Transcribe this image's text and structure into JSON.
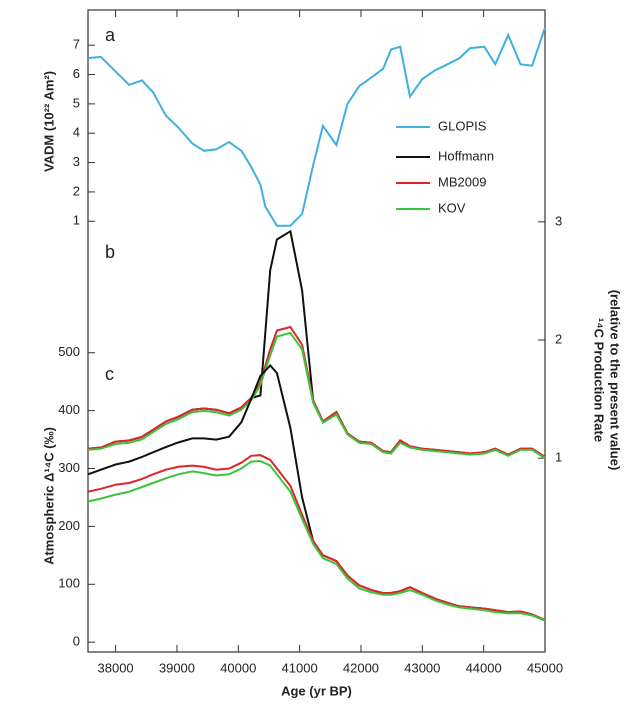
{
  "chart_data": [
    {
      "type": "line",
      "label": "a",
      "ylabel": "VADM (10²² Am²)",
      "yaxis_side": "left",
      "ylim": [
        0.6,
        8.2
      ],
      "yticks": [
        1,
        2,
        3,
        4,
        5,
        6,
        7
      ],
      "x": [
        37550,
        37760,
        38000,
        38220,
        38430,
        38610,
        38820,
        39020,
        39250,
        39440,
        39640,
        39850,
        40050,
        40210,
        40360,
        40440,
        40630,
        40850,
        41040,
        41220,
        41380,
        41600,
        41780,
        41970,
        42170,
        42360,
        42490,
        42640,
        42800,
        43000,
        43210,
        43410,
        43600,
        43780,
        44010,
        44190,
        44400,
        44600,
        44790,
        45000
      ],
      "series": [
        {
          "name": "GLOPIS",
          "color": "#3fb0e0",
          "values": [
            6.56,
            6.6,
            6.1,
            5.65,
            5.8,
            5.4,
            4.6,
            4.2,
            3.65,
            3.4,
            3.45,
            3.7,
            3.4,
            2.85,
            2.25,
            1.5,
            0.85,
            0.85,
            1.25,
            2.9,
            4.25,
            3.6,
            5.0,
            5.6,
            5.9,
            6.2,
            6.85,
            6.95,
            5.25,
            5.85,
            6.15,
            6.35,
            6.55,
            6.9,
            6.95,
            6.35,
            7.35,
            6.35,
            6.3,
            7.6
          ]
        }
      ]
    },
    {
      "type": "line",
      "label": "b",
      "ylabel": [
        "¹⁴C Production Rate",
        "(relative to the present value)"
      ],
      "yaxis_side": "right",
      "ylim": [
        0.9,
        3.1
      ],
      "yticks": [
        1,
        2,
        3
      ],
      "x": [
        37550,
        37760,
        38000,
        38220,
        38430,
        38610,
        38820,
        39020,
        39250,
        39440,
        39640,
        39850,
        40050,
        40210,
        40360,
        40520,
        40630,
        40850,
        41040,
        41220,
        41380,
        41600,
        41780,
        41970,
        42170,
        42360,
        42490,
        42640,
        42800,
        43000,
        43210,
        43410,
        43600,
        43780,
        44010,
        44190,
        44400,
        44600,
        44790,
        45000
      ],
      "series": [
        {
          "name": "Hoffmann",
          "color": "#111111",
          "values": [
            1.08,
            1.09,
            1.14,
            1.15,
            1.18,
            1.24,
            1.31,
            1.35,
            1.41,
            1.42,
            1.41,
            1.38,
            1.43,
            1.51,
            1.53,
            2.59,
            2.85,
            2.92,
            2.42,
            1.49,
            1.31,
            1.39,
            1.21,
            1.14,
            1.13,
            1.06,
            1.05,
            1.15,
            1.1,
            1.08,
            1.07,
            1.06,
            1.05,
            1.04,
            1.05,
            1.08,
            1.03,
            1.08,
            1.08,
            1.01
          ]
        },
        {
          "name": "MB2009",
          "color": "#e0242a",
          "values": [
            1.08,
            1.09,
            1.14,
            1.15,
            1.18,
            1.24,
            1.31,
            1.35,
            1.41,
            1.42,
            1.41,
            1.38,
            1.43,
            1.51,
            1.64,
            1.92,
            2.08,
            2.11,
            1.96,
            1.49,
            1.31,
            1.39,
            1.21,
            1.14,
            1.13,
            1.06,
            1.05,
            1.15,
            1.1,
            1.08,
            1.07,
            1.06,
            1.05,
            1.04,
            1.05,
            1.08,
            1.03,
            1.08,
            1.08,
            1.01
          ]
        },
        {
          "name": "KOV",
          "color": "#3cc43c",
          "values": [
            1.07,
            1.08,
            1.12,
            1.13,
            1.16,
            1.22,
            1.29,
            1.33,
            1.39,
            1.4,
            1.39,
            1.36,
            1.41,
            1.49,
            1.62,
            1.87,
            2.03,
            2.06,
            1.92,
            1.47,
            1.3,
            1.37,
            1.2,
            1.13,
            1.12,
            1.05,
            1.04,
            1.13,
            1.09,
            1.07,
            1.06,
            1.05,
            1.04,
            1.03,
            1.04,
            1.07,
            1.02,
            1.07,
            1.07,
            1.0
          ]
        }
      ]
    },
    {
      "type": "line",
      "label": "c",
      "ylabel": "Atmospheric Δ¹⁴C (‰)",
      "yaxis_side": "left",
      "xlabel": "Age (yr BP)",
      "ylim": [
        -17,
        522
      ],
      "yticks": [
        0,
        100,
        200,
        300,
        400,
        500
      ],
      "xlim": [
        37550,
        45000
      ],
      "xticks": [
        38000,
        39000,
        40000,
        41000,
        42000,
        43000,
        44000,
        45000
      ],
      "x": [
        37550,
        37760,
        38000,
        38220,
        38430,
        38610,
        38820,
        39020,
        39250,
        39440,
        39640,
        39850,
        40050,
        40210,
        40360,
        40520,
        40630,
        40850,
        41040,
        41220,
        41380,
        41600,
        41780,
        41970,
        42170,
        42360,
        42490,
        42640,
        42800,
        43000,
        43210,
        43410,
        43600,
        43780,
        44010,
        44190,
        44400,
        44600,
        44790,
        45000
      ],
      "series": [
        {
          "color": "#111111",
          "values": [
            290,
            298,
            307,
            312,
            320,
            328,
            337,
            345,
            352,
            352,
            350,
            355,
            380,
            420,
            460,
            478,
            465,
            370,
            250,
            175,
            150,
            140,
            115,
            98,
            90,
            85,
            85,
            88,
            95,
            85,
            75,
            68,
            62,
            60,
            58,
            55,
            52,
            53,
            48,
            38
          ]
        },
        {
          "color": "#e0242a",
          "values": [
            260,
            265,
            272,
            275,
            282,
            290,
            298,
            303,
            305,
            303,
            298,
            300,
            310,
            322,
            323,
            315,
            300,
            270,
            220,
            175,
            150,
            140,
            115,
            98,
            90,
            85,
            85,
            88,
            95,
            85,
            75,
            68,
            62,
            60,
            58,
            55,
            52,
            53,
            48,
            38
          ]
        },
        {
          "color": "#3cc43c",
          "values": [
            243,
            248,
            255,
            260,
            268,
            275,
            283,
            290,
            295,
            292,
            288,
            290,
            300,
            312,
            313,
            305,
            290,
            260,
            213,
            170,
            145,
            135,
            110,
            93,
            86,
            82,
            82,
            85,
            90,
            82,
            72,
            65,
            60,
            58,
            55,
            52,
            50,
            50,
            46,
            37
          ]
        }
      ]
    }
  ]
}
